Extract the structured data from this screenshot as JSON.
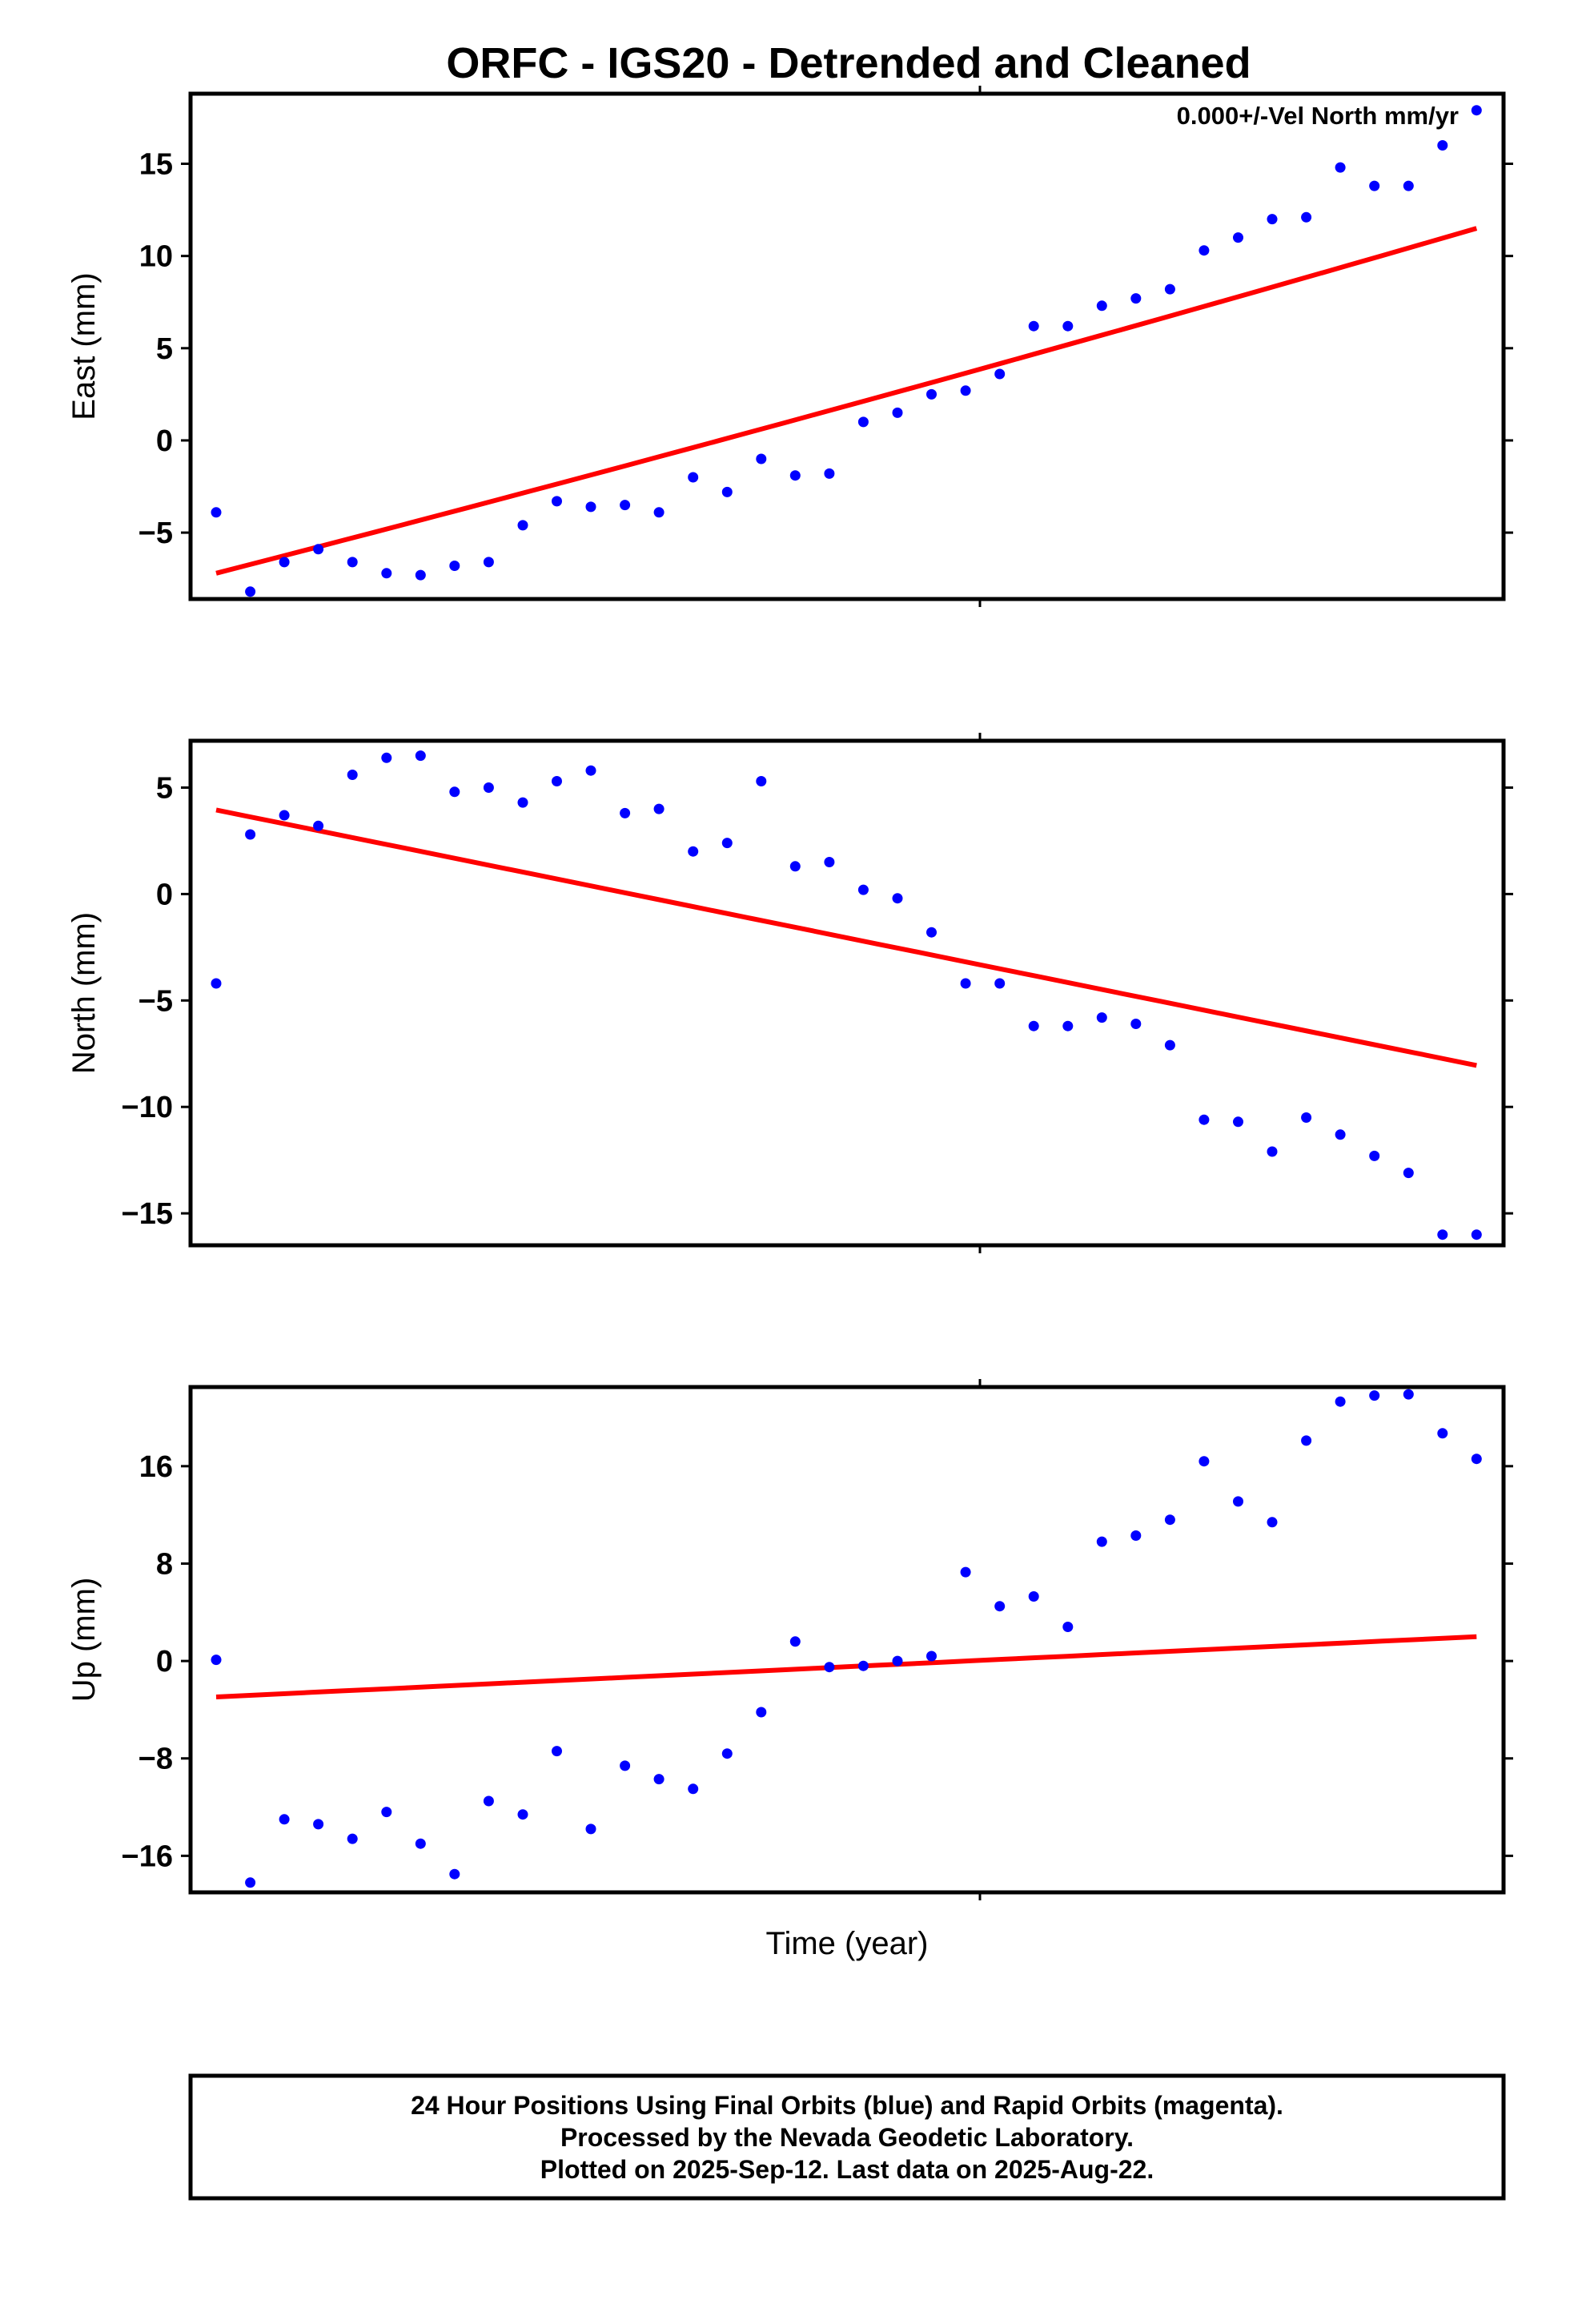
{
  "title": "ORFC - IGS20 - Detrended and Cleaned",
  "xlabel": "Time (year)",
  "footer": {
    "line1": "24 Hour Positions Using Final Orbits (blue) and Rapid Orbits (magenta).",
    "line2": "Processed by the Nevada Geodetic Laboratory.",
    "line3": "Plotted on 2025-Sep-12. Last data on 2025-Aug-22."
  },
  "colors": {
    "points": "#0000ff",
    "trend": "#ff0000",
    "frame": "#000000"
  },
  "chart_data": [
    {
      "type": "scatter",
      "ylabel": "East (mm)",
      "annotation": "0.000+/-Vel North mm/yr",
      "ylim": [
        -8.6,
        18.8
      ],
      "yticks": [
        -5,
        0,
        5,
        10,
        15
      ],
      "ytick_labels": [
        "−5",
        "0",
        "5",
        "10",
        "15"
      ],
      "series": [
        {
          "values": [
            -3.9,
            -8.2,
            -6.6,
            -5.9,
            -6.6,
            -7.2,
            -7.3,
            -6.8,
            -6.6,
            -4.6,
            -3.3,
            -3.6,
            -3.5,
            -3.9,
            -2.0,
            -2.8,
            -1.0,
            -1.9,
            -1.8,
            1.0,
            1.5,
            2.5,
            2.7,
            3.6,
            6.2,
            6.2,
            7.3,
            7.7,
            8.2,
            10.3,
            11.0,
            12.0,
            12.1,
            14.8,
            13.8,
            13.8,
            16.0,
            17.9
          ]
        }
      ],
      "trend": {
        "start": -7.2,
        "end": 11.5,
        "curve": 0.06
      }
    },
    {
      "type": "scatter",
      "ylabel": "North (mm)",
      "ylim": [
        -16.5,
        7.2
      ],
      "yticks": [
        -15,
        -10,
        -5,
        0,
        5
      ],
      "ytick_labels": [
        "−15",
        "−10",
        "−5",
        "0",
        "5"
      ],
      "series": [
        {
          "values": [
            -4.2,
            2.8,
            3.7,
            3.2,
            5.6,
            6.4,
            6.5,
            4.8,
            5.0,
            4.3,
            5.3,
            5.8,
            3.8,
            4.0,
            2.0,
            2.4,
            5.3,
            1.3,
            1.5,
            0.2,
            -0.2,
            -1.8,
            -4.2,
            -4.2,
            -6.2,
            -6.2,
            -5.8,
            -6.1,
            -7.1,
            -10.6,
            -10.7,
            -12.1,
            -10.5,
            -11.3,
            -12.3,
            -13.1,
            -16.0,
            -16.0
          ]
        }
      ],
      "trend": {
        "start": 3.95,
        "end": -8.05,
        "curve": 0
      }
    },
    {
      "type": "scatter",
      "ylabel": "Up (mm)",
      "ylim": [
        -19.0,
        22.5
      ],
      "yticks": [
        -16,
        -8,
        0,
        8,
        16
      ],
      "ytick_labels": [
        "−16",
        "−8",
        "0",
        "8",
        "16"
      ],
      "series": [
        {
          "values": [
            0.1,
            -18.2,
            -13.0,
            -13.4,
            -14.6,
            -12.4,
            -15.0,
            -17.5,
            -11.5,
            -12.6,
            -7.4,
            -13.8,
            -8.6,
            -9.7,
            -10.5,
            -7.6,
            -4.2,
            1.6,
            -0.5,
            -0.4,
            0.0,
            0.4,
            7.3,
            4.5,
            5.3,
            2.8,
            9.8,
            10.3,
            11.6,
            16.4,
            13.1,
            11.4,
            18.1,
            21.3,
            21.8,
            21.9,
            18.7,
            16.6
          ]
        }
      ],
      "trend": {
        "start": -2.95,
        "end": 2.0,
        "curve": 0
      }
    }
  ]
}
